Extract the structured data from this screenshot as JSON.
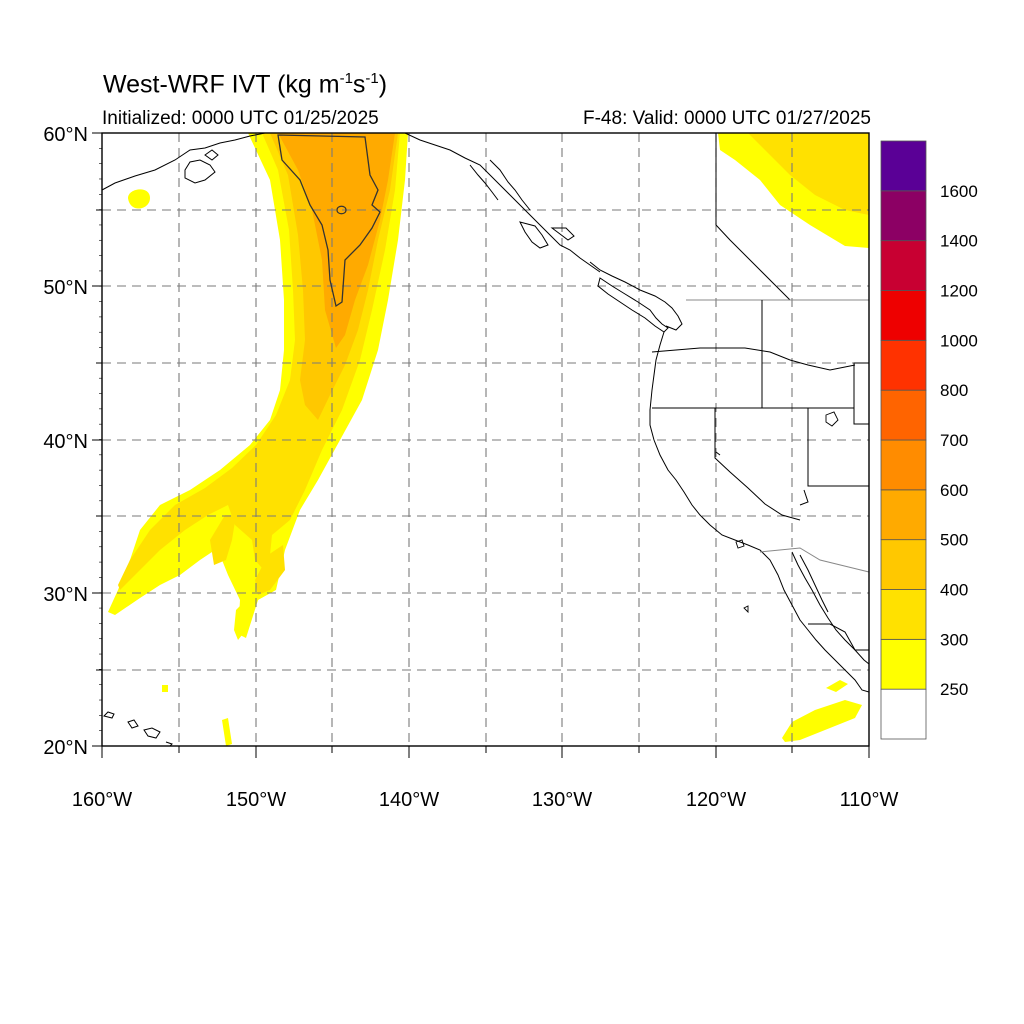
{
  "header": {
    "title_prefix": "West-WRF IVT (kg m",
    "title_exp1": "-1",
    "title_mid": "s",
    "title_exp2": "-1",
    "title_suffix": ")",
    "initialized": "Initialized: 0000 UTC 01/25/2025",
    "valid": "F-48: Valid: 0000 UTC 01/27/2025"
  },
  "axes": {
    "lat_labels": [
      "60°N",
      "50°N",
      "40°N",
      "30°N",
      "20°N"
    ],
    "lon_labels": [
      "160°W",
      "150°W",
      "140°W",
      "130°W",
      "120°W",
      "110°W"
    ]
  },
  "map": {
    "lon_range": [
      -160,
      -110
    ],
    "lat_range": [
      20,
      60
    ],
    "gridline_style": "dashed"
  },
  "colorbar": {
    "labels": [
      "250",
      "300",
      "400",
      "500",
      "600",
      "700",
      "800",
      "1000",
      "1200",
      "1400",
      "1600"
    ],
    "colors": [
      "#ffffff",
      "#ffff00",
      "#ffe100",
      "#ffc800",
      "#ffaa00",
      "#ff8c00",
      "#ff6400",
      "#ff3200",
      "#ee0000",
      "#c80032",
      "#8c0064",
      "#5a0096"
    ]
  }
}
